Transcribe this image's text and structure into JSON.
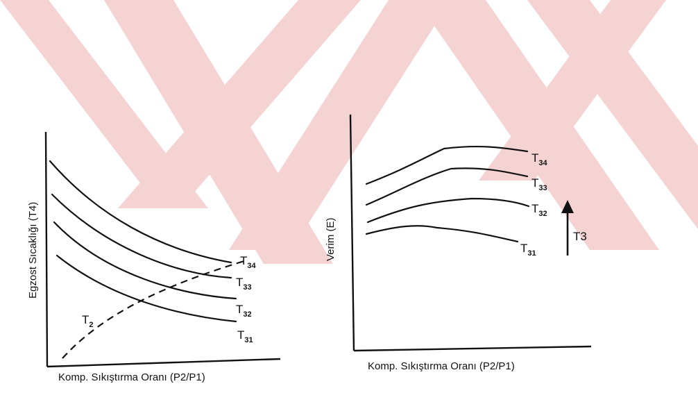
{
  "watermark": {
    "color": "#f6d3d3"
  },
  "chart_data": [
    {
      "type": "line",
      "xlabel": "Komp. Sıkıştırma Oranı (P2/P1)",
      "ylabel": "Egzost Sıcaklığı (T4)",
      "series": [
        {
          "name": "T34",
          "label_main": "T",
          "label_sub": "34"
        },
        {
          "name": "T33",
          "label_main": "T",
          "label_sub": "33"
        },
        {
          "name": "T32",
          "label_main": "T",
          "label_sub": "32"
        },
        {
          "name": "T31",
          "label_main": "T",
          "label_sub": "31"
        },
        {
          "name": "T2",
          "label_main": "T",
          "label_sub": "2",
          "style": "dashed"
        }
      ]
    },
    {
      "type": "line",
      "xlabel": "Komp. Sıkıştırma Oranı (P2/P1)",
      "ylabel": "Verim (E)",
      "series": [
        {
          "name": "T34",
          "label_main": "T",
          "label_sub": "34"
        },
        {
          "name": "T33",
          "label_main": "T",
          "label_sub": "33"
        },
        {
          "name": "T32",
          "label_main": "T",
          "label_sub": "32"
        },
        {
          "name": "T31",
          "label_main": "T",
          "label_sub": "31"
        }
      ],
      "annotation": {
        "arrow_label": "T3"
      }
    }
  ]
}
